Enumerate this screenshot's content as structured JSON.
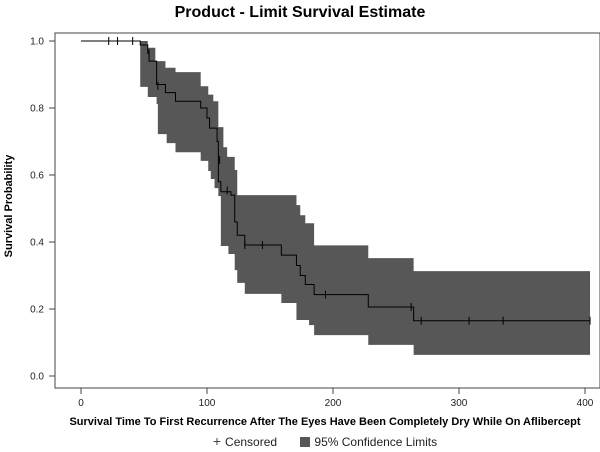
{
  "chart_data": {
    "type": "line",
    "subtype": "kaplan-meier-step",
    "title": "Product - Limit Survival Estimate",
    "xlabel": "Survival Time To First Recurrence After The Eyes Have Been Completely Dry While On Aflibercept",
    "ylabel": "Survival Probability",
    "xlim": [
      0,
      400
    ],
    "ylim": [
      0.0,
      1.0
    ],
    "xticks": [
      0,
      100,
      200,
      300,
      400
    ],
    "xtick_labels": [
      "0",
      "100",
      "200",
      "300",
      "400"
    ],
    "yticks": [
      0.0,
      0.2,
      0.4,
      0.6,
      0.8,
      1.0
    ],
    "ytick_labels": [
      "0.0",
      "0.2",
      "0.4",
      "0.6",
      "0.8",
      "1.0"
    ],
    "grid": false,
    "legend": {
      "position": "bottom",
      "entries": [
        {
          "label": "Censored",
          "marker": "+"
        },
        {
          "label": "95% Confidence Limits",
          "marker": "square",
          "color": "#575757"
        }
      ]
    },
    "colors": {
      "band": "#575757",
      "line": "#000000",
      "axis": "#444444"
    },
    "survival_steps": [
      {
        "t": 0,
        "s": 1.0
      },
      {
        "t": 47,
        "s": 0.988
      },
      {
        "t": 53,
        "s": 0.963
      },
      {
        "t": 54,
        "s": 0.94
      },
      {
        "t": 60,
        "s": 0.87
      },
      {
        "t": 67,
        "s": 0.846
      },
      {
        "t": 75,
        "s": 0.82
      },
      {
        "t": 95,
        "s": 0.8
      },
      {
        "t": 100,
        "s": 0.77
      },
      {
        "t": 102,
        "s": 0.74
      },
      {
        "t": 108,
        "s": 0.7
      },
      {
        "t": 109,
        "s": 0.58
      },
      {
        "t": 111,
        "s": 0.55
      },
      {
        "t": 119,
        "s": 0.54
      },
      {
        "t": 122,
        "s": 0.46
      },
      {
        "t": 124,
        "s": 0.42
      },
      {
        "t": 130,
        "s": 0.391
      },
      {
        "t": 159,
        "s": 0.361
      },
      {
        "t": 171,
        "s": 0.33
      },
      {
        "t": 174,
        "s": 0.3
      },
      {
        "t": 178,
        "s": 0.273
      },
      {
        "t": 185,
        "s": 0.243
      },
      {
        "t": 228,
        "s": 0.206
      },
      {
        "t": 264,
        "s": 0.165
      },
      {
        "t": 404,
        "s": 0.165
      }
    ],
    "censored": [
      {
        "t": 22,
        "s": 1.0
      },
      {
        "t": 29,
        "s": 1.0
      },
      {
        "t": 41,
        "s": 1.0
      },
      {
        "t": 54,
        "s": 0.963
      },
      {
        "t": 61,
        "s": 0.866
      },
      {
        "t": 110,
        "s": 0.645
      },
      {
        "t": 116,
        "s": 0.554
      },
      {
        "t": 130,
        "s": 0.391
      },
      {
        "t": 144,
        "s": 0.391
      },
      {
        "t": 194,
        "s": 0.243
      },
      {
        "t": 262,
        "s": 0.206
      },
      {
        "t": 270,
        "s": 0.165
      },
      {
        "t": 308,
        "s": 0.165
      },
      {
        "t": 335,
        "s": 0.165
      },
      {
        "t": 404,
        "s": 0.165
      }
    ],
    "ci_upper_steps": [
      {
        "t": 0,
        "s": 1.0
      },
      {
        "t": 53,
        "s": 0.98
      },
      {
        "t": 59,
        "s": 0.94
      },
      {
        "t": 67,
        "s": 0.92
      },
      {
        "t": 75,
        "s": 0.907
      },
      {
        "t": 95,
        "s": 0.865
      },
      {
        "t": 101,
        "s": 0.84
      },
      {
        "t": 105,
        "s": 0.82
      },
      {
        "t": 109,
        "s": 0.743
      },
      {
        "t": 113,
        "s": 0.683
      },
      {
        "t": 116,
        "s": 0.654
      },
      {
        "t": 122,
        "s": 0.615
      },
      {
        "t": 124,
        "s": 0.54
      },
      {
        "t": 171,
        "s": 0.51
      },
      {
        "t": 174,
        "s": 0.48
      },
      {
        "t": 178,
        "s": 0.456
      },
      {
        "t": 185,
        "s": 0.39
      },
      {
        "t": 228,
        "s": 0.352
      },
      {
        "t": 264,
        "s": 0.313
      },
      {
        "t": 404,
        "s": 0.313
      }
    ],
    "ci_lower_steps": [
      {
        "t": 0,
        "s": 1.0
      },
      {
        "t": 47,
        "s": 0.863
      },
      {
        "t": 53,
        "s": 0.833
      },
      {
        "t": 60,
        "s": 0.812
      },
      {
        "t": 61,
        "s": 0.722
      },
      {
        "t": 68,
        "s": 0.695
      },
      {
        "t": 75,
        "s": 0.668
      },
      {
        "t": 95,
        "s": 0.642
      },
      {
        "t": 101,
        "s": 0.612
      },
      {
        "t": 103,
        "s": 0.588
      },
      {
        "t": 106,
        "s": 0.561
      },
      {
        "t": 109,
        "s": 0.537
      },
      {
        "t": 111,
        "s": 0.388
      },
      {
        "t": 117,
        "s": 0.364
      },
      {
        "t": 122,
        "s": 0.316
      },
      {
        "t": 124,
        "s": 0.278
      },
      {
        "t": 130,
        "s": 0.245
      },
      {
        "t": 159,
        "s": 0.218
      },
      {
        "t": 171,
        "s": 0.167
      },
      {
        "t": 181,
        "s": 0.152
      },
      {
        "t": 185,
        "s": 0.122
      },
      {
        "t": 228,
        "s": 0.093
      },
      {
        "t": 264,
        "s": 0.063
      },
      {
        "t": 404,
        "s": 0.063
      }
    ]
  }
}
